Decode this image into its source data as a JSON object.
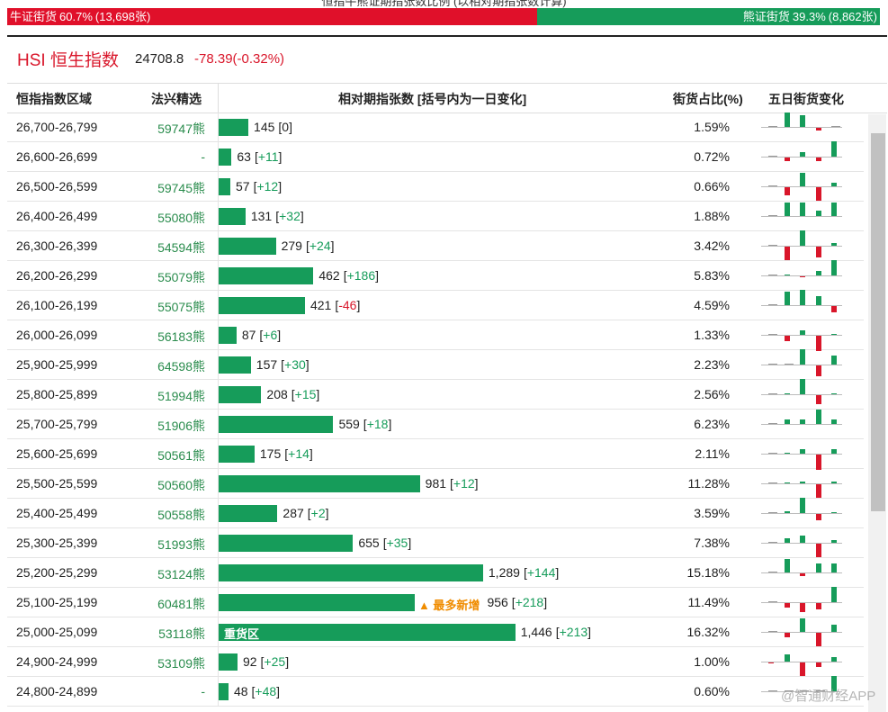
{
  "top_title": "恒指牛熊证期指张数比例 (以相对期指张数计算)",
  "ratio": {
    "bull": {
      "label": "牛证街货",
      "pct": 60.7,
      "count": "(13,698张)"
    },
    "bear": {
      "label": "熊证街货",
      "pct": 39.3,
      "count": "(8,862张)"
    }
  },
  "index": {
    "name": "HSI 恒生指数",
    "price": "24708.8",
    "change": "-78.39(-0.32%)"
  },
  "columns": [
    "恒指指数区域",
    "法兴精选",
    "相对期指张数 [括号内为一日变化]",
    "街货占比(%)",
    "五日街货变化"
  ],
  "rows": [
    {
      "range": "26,700-26,799",
      "pick": "59747熊",
      "count": 145,
      "change": "0",
      "share": "1.59%",
      "five_day": [
        0,
        16,
        13,
        -3,
        0
      ]
    },
    {
      "range": "26,600-26,699",
      "pick": "-",
      "count": 63,
      "change": "+11",
      "share": "0.72%",
      "five_day": [
        0,
        -4,
        5,
        -4,
        17
      ]
    },
    {
      "range": "26,500-26,599",
      "pick": "59745熊",
      "count": 57,
      "change": "+12",
      "share": "0.66%",
      "five_day": [
        0,
        -9,
        15,
        -15,
        4
      ]
    },
    {
      "range": "26,400-26,499",
      "pick": "55080熊",
      "count": 131,
      "change": "+32",
      "share": "1.88%",
      "five_day": [
        0,
        15,
        15,
        6,
        15
      ]
    },
    {
      "range": "26,300-26,399",
      "pick": "54594熊",
      "count": 279,
      "change": "+24",
      "share": "3.42%",
      "five_day": [
        0,
        -15,
        17,
        -12,
        3
      ]
    },
    {
      "range": "26,200-26,299",
      "pick": "55079熊",
      "count": 462,
      "change": "+186",
      "share": "5.83%",
      "five_day": [
        0,
        1,
        -1,
        5,
        17
      ]
    },
    {
      "range": "26,100-26,199",
      "pick": "55075熊",
      "count": 421,
      "change": "-46",
      "share": "4.59%",
      "five_day": [
        0,
        15,
        17,
        10,
        -7
      ]
    },
    {
      "range": "26,000-26,099",
      "pick": "56183熊",
      "count": 87,
      "change": "+6",
      "share": "1.33%",
      "five_day": [
        0,
        -6,
        5,
        -17,
        1
      ]
    },
    {
      "range": "25,900-25,999",
      "pick": "64598熊",
      "count": 157,
      "change": "+30",
      "share": "2.23%",
      "five_day": [
        0,
        0,
        17,
        -12,
        10
      ]
    },
    {
      "range": "25,800-25,899",
      "pick": "51994熊",
      "count": 208,
      "change": "+15",
      "share": "2.56%",
      "five_day": [
        0,
        1,
        17,
        -10,
        1
      ]
    },
    {
      "range": "25,700-25,799",
      "pick": "51906熊",
      "count": 559,
      "change": "+18",
      "share": "6.23%",
      "five_day": [
        0,
        5,
        5,
        16,
        5
      ]
    },
    {
      "range": "25,600-25,699",
      "pick": "50561熊",
      "count": 175,
      "change": "+14",
      "share": "2.11%",
      "five_day": [
        0,
        1,
        5,
        -17,
        5
      ]
    },
    {
      "range": "25,500-25,599",
      "pick": "50560熊",
      "count": 981,
      "change": "+12",
      "share": "11.28%",
      "five_day": [
        0,
        1,
        2,
        -15,
        2
      ]
    },
    {
      "range": "25,400-25,499",
      "pick": "50558熊",
      "count": 287,
      "change": "+2",
      "share": "3.59%",
      "five_day": [
        0,
        2,
        17,
        -7,
        1
      ]
    },
    {
      "range": "25,300-25,399",
      "pick": "51993熊",
      "count": 655,
      "change": "+35",
      "share": "7.38%",
      "five_day": [
        0,
        5,
        8,
        -15,
        3
      ]
    },
    {
      "range": "25,200-25,299",
      "pick": "53124熊",
      "count": 1289,
      "count_label": "1,289",
      "change": "+144",
      "share": "15.18%",
      "five_day": [
        0,
        15,
        -3,
        10,
        10
      ]
    },
    {
      "range": "25,100-25,199",
      "pick": "60481熊",
      "count": 956,
      "change": "+218",
      "share": "11.49%",
      "five_day": [
        0,
        -5,
        -10,
        -7,
        17
      ],
      "annotation": "▲ 最多新增"
    },
    {
      "range": "25,000-25,099",
      "pick": "53118熊",
      "count": 1446,
      "count_label": "1,446",
      "change": "+213",
      "share": "16.32%",
      "five_day": [
        0,
        -5,
        15,
        -15,
        8
      ],
      "bar_label": "重货区"
    },
    {
      "range": "24,900-24,999",
      "pick": "53109熊",
      "count": 92,
      "change": "+25",
      "share": "1.00%",
      "five_day": [
        -1,
        8,
        -15,
        -5,
        5
      ]
    },
    {
      "range": "24,800-24,899",
      "pick": "-",
      "count": 48,
      "change": "+48",
      "share": "0.60%",
      "five_day": [
        0,
        0,
        0,
        0,
        17
      ]
    }
  ],
  "watermark": "@智通财经APP"
}
